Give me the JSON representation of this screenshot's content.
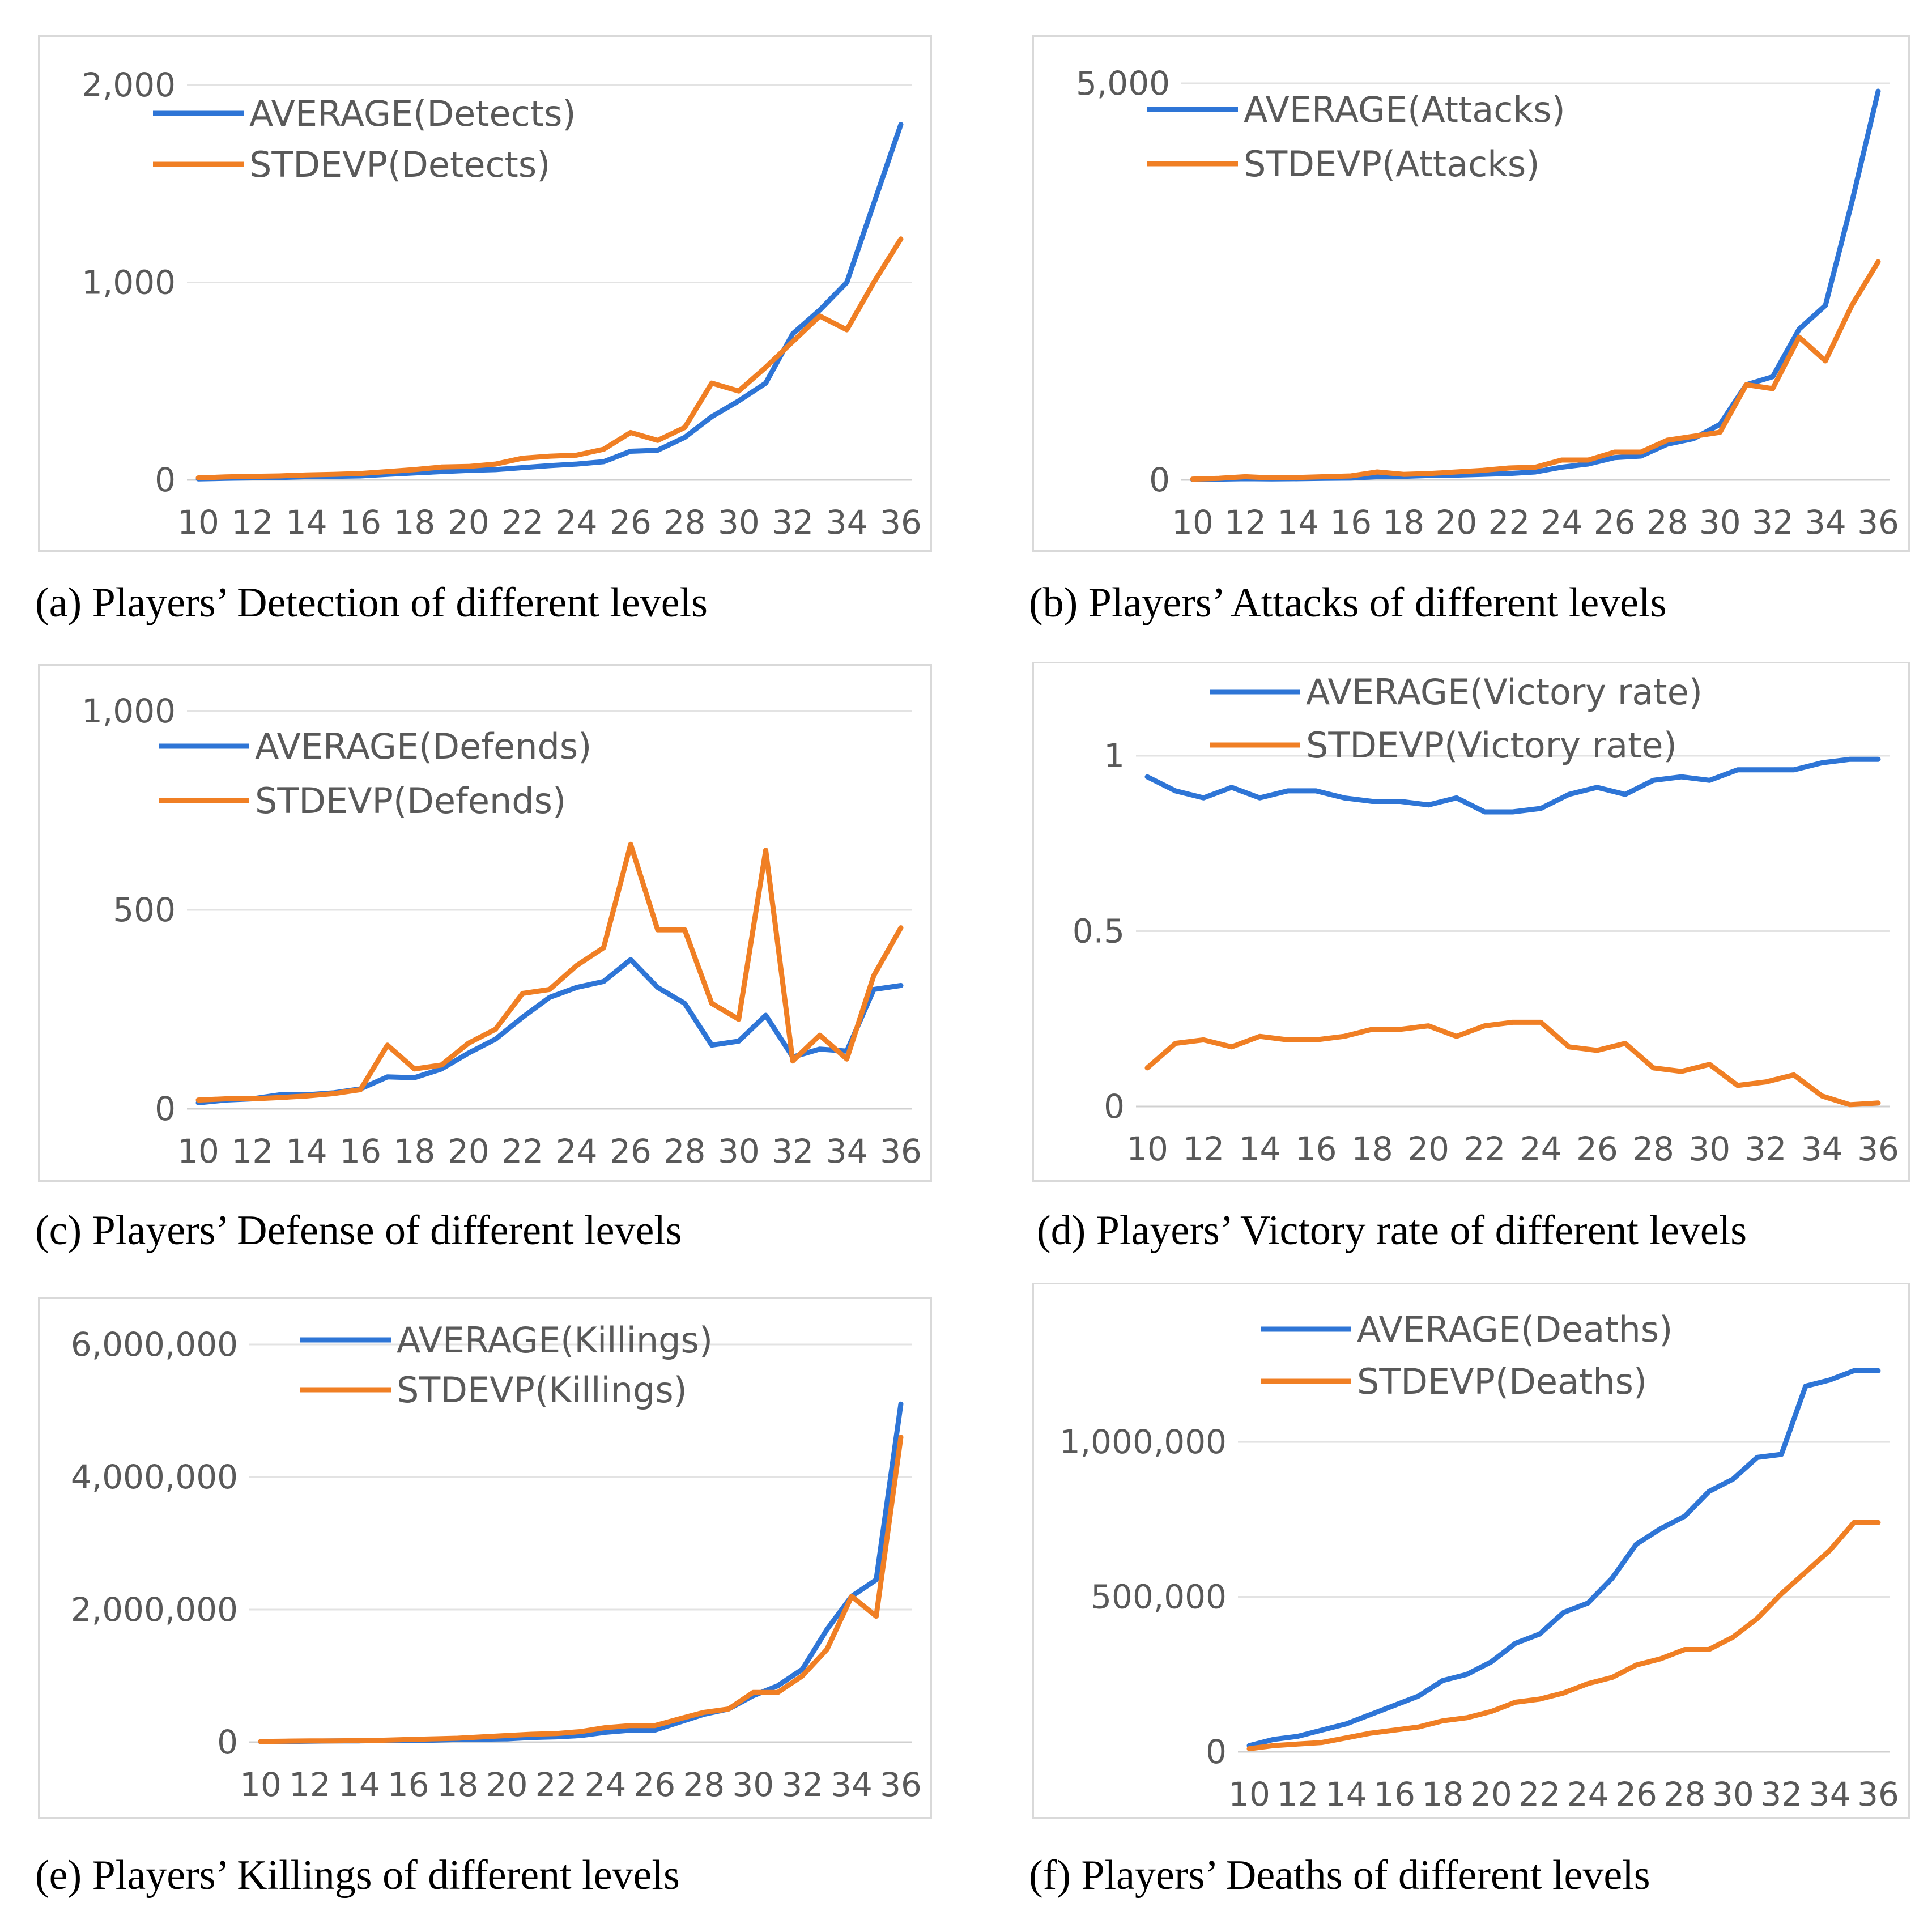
{
  "figure": {
    "colors": {
      "average": "#2e75d6",
      "stdevp": "#f07f24",
      "grid": "#e3e3e3",
      "axis": "#d0d0d0"
    }
  },
  "chart_data": [
    {
      "id": "a",
      "type": "line",
      "caption": "(a) Players’ Detection of different levels",
      "x": [
        10,
        11,
        12,
        13,
        14,
        15,
        16,
        17,
        18,
        19,
        20,
        21,
        22,
        23,
        24,
        25,
        26,
        27,
        28,
        29,
        30,
        31,
        32,
        33,
        34,
        35,
        36
      ],
      "x_tick_labels": [
        "10",
        "12",
        "14",
        "16",
        "18",
        "20",
        "22",
        "24",
        "26",
        "28",
        "30",
        "32",
        "34",
        "36"
      ],
      "y_ticks": [
        0,
        1000,
        2000
      ],
      "y_tick_labels": [
        "0",
        "1,000",
        "2,000"
      ],
      "ylim": [
        0,
        2000
      ],
      "legend_position": "top-left",
      "series": [
        {
          "name": "AVERAGE(Detects)",
          "color": "#2e75d6",
          "values": [
            5,
            8,
            10,
            12,
            16,
            18,
            20,
            28,
            35,
            42,
            48,
            52,
            62,
            72,
            80,
            92,
            145,
            150,
            215,
            320,
            400,
            490,
            740,
            860,
            1000,
            1400,
            1800
          ]
        },
        {
          "name": "STDEVP(Detects)",
          "color": "#f07f24",
          "values": [
            10,
            15,
            18,
            20,
            25,
            28,
            32,
            42,
            52,
            65,
            68,
            80,
            110,
            120,
            125,
            155,
            240,
            200,
            265,
            490,
            450,
            570,
            700,
            830,
            760,
            1000,
            1220
          ]
        }
      ]
    },
    {
      "id": "b",
      "type": "line",
      "caption": "(b) Players’ Attacks of different levels",
      "x": [
        10,
        11,
        12,
        13,
        14,
        15,
        16,
        17,
        18,
        19,
        20,
        21,
        22,
        23,
        24,
        25,
        26,
        27,
        28,
        29,
        30,
        31,
        32,
        33,
        34,
        35,
        36
      ],
      "x_tick_labels": [
        "10",
        "12",
        "14",
        "16",
        "18",
        "20",
        "22",
        "24",
        "26",
        "28",
        "30",
        "32",
        "34",
        "36"
      ],
      "y_ticks": [
        0,
        5000
      ],
      "y_tick_labels": [
        "0",
        "5,000"
      ],
      "ylim": [
        0,
        5000
      ],
      "legend_position": "top-left",
      "series": [
        {
          "name": "AVERAGE(Attacks)",
          "color": "#2e75d6",
          "values": [
            5,
            10,
            15,
            12,
            15,
            20,
            22,
            40,
            45,
            55,
            60,
            70,
            80,
            100,
            160,
            200,
            280,
            300,
            450,
            520,
            700,
            1200,
            1300,
            1900,
            2200,
            3500,
            4900
          ]
        },
        {
          "name": "STDEVP(Attacks)",
          "color": "#f07f24",
          "values": [
            10,
            20,
            40,
            25,
            30,
            40,
            50,
            100,
            70,
            80,
            100,
            120,
            150,
            160,
            250,
            250,
            350,
            350,
            500,
            550,
            600,
            1200,
            1150,
            1800,
            1500,
            2200,
            2750
          ]
        }
      ]
    },
    {
      "id": "c",
      "type": "line",
      "caption": "(c) Players’ Defense of different levels",
      "x": [
        10,
        11,
        12,
        13,
        14,
        15,
        16,
        17,
        18,
        19,
        20,
        21,
        22,
        23,
        24,
        25,
        26,
        27,
        28,
        29,
        30,
        31,
        32,
        33,
        34,
        35,
        36
      ],
      "x_tick_labels": [
        "10",
        "12",
        "14",
        "16",
        "18",
        "20",
        "22",
        "24",
        "26",
        "28",
        "30",
        "32",
        "34",
        "36"
      ],
      "y_ticks": [
        0,
        500,
        1000
      ],
      "y_tick_labels": [
        "0",
        "500",
        "1,000"
      ],
      "ylim": [
        0,
        1000
      ],
      "legend_position": "top-left",
      "series": [
        {
          "name": "AVERAGE(Defends)",
          "color": "#2e75d6",
          "values": [
            15,
            22,
            25,
            35,
            35,
            40,
            50,
            80,
            78,
            100,
            140,
            175,
            230,
            280,
            305,
            320,
            375,
            305,
            265,
            160,
            170,
            235,
            130,
            150,
            145,
            300,
            310
          ]
        },
        {
          "name": "STDEVP(Defends)",
          "color": "#f07f24",
          "values": [
            22,
            25,
            25,
            28,
            32,
            38,
            48,
            160,
            100,
            110,
            165,
            200,
            290,
            300,
            360,
            405,
            665,
            450,
            450,
            265,
            225,
            650,
            120,
            185,
            125,
            335,
            455
          ]
        }
      ]
    },
    {
      "id": "d",
      "type": "line",
      "caption": "(d) Players’ Victory rate of different levels",
      "x": [
        10,
        11,
        12,
        13,
        14,
        15,
        16,
        17,
        18,
        19,
        20,
        21,
        22,
        23,
        24,
        25,
        26,
        27,
        28,
        29,
        30,
        31,
        32,
        33,
        34,
        35,
        36
      ],
      "x_tick_labels": [
        "10",
        "12",
        "14",
        "16",
        "18",
        "20",
        "22",
        "24",
        "26",
        "28",
        "30",
        "32",
        "34",
        "36"
      ],
      "y_ticks": [
        0,
        0.5,
        1
      ],
      "y_tick_labels": [
        "0",
        "0.5",
        "1"
      ],
      "ylim": [
        0,
        1
      ],
      "legend_position": "top",
      "series": [
        {
          "name": "AVERAGE(Victory rate)",
          "color": "#2e75d6",
          "values": [
            0.94,
            0.9,
            0.88,
            0.91,
            0.88,
            0.9,
            0.9,
            0.88,
            0.87,
            0.87,
            0.86,
            0.88,
            0.84,
            0.84,
            0.85,
            0.89,
            0.91,
            0.89,
            0.93,
            0.94,
            0.93,
            0.96,
            0.96,
            0.96,
            0.98,
            0.99,
            0.99
          ]
        },
        {
          "name": "STDEVP(Victory rate)",
          "color": "#f07f24",
          "values": [
            0.11,
            0.18,
            0.19,
            0.17,
            0.2,
            0.19,
            0.19,
            0.2,
            0.22,
            0.22,
            0.23,
            0.2,
            0.23,
            0.24,
            0.24,
            0.17,
            0.16,
            0.18,
            0.11,
            0.1,
            0.12,
            0.06,
            0.07,
            0.09,
            0.03,
            0.005,
            0.01
          ]
        }
      ]
    },
    {
      "id": "e",
      "type": "line",
      "caption": "(e) Players’ Killings of different levels",
      "x": [
        10,
        11,
        12,
        13,
        14,
        15,
        16,
        17,
        18,
        19,
        20,
        21,
        22,
        23,
        24,
        25,
        26,
        27,
        28,
        29,
        30,
        31,
        32,
        33,
        34,
        35,
        36
      ],
      "x_tick_labels": [
        "10",
        "12",
        "14",
        "16",
        "18",
        "20",
        "22",
        "24",
        "26",
        "28",
        "30",
        "32",
        "34",
        "36"
      ],
      "y_ticks": [
        0,
        2000000,
        4000000,
        6000000
      ],
      "y_tick_labels": [
        "0",
        "2,000,000",
        "4,000,000",
        "6,000,000"
      ],
      "ylim": [
        0,
        6000000
      ],
      "legend_position": "top",
      "series": [
        {
          "name": "AVERAGE(Killings)",
          "color": "#2e75d6",
          "values": [
            5000,
            10000,
            15000,
            20000,
            20000,
            25000,
            25000,
            30000,
            40000,
            45000,
            50000,
            70000,
            80000,
            100000,
            150000,
            180000,
            180000,
            300000,
            420000,
            500000,
            700000,
            850000,
            1100000,
            1700000,
            2200000,
            2450000,
            5100000
          ]
        },
        {
          "name": "STDEVP(Killings)",
          "color": "#f07f24",
          "values": [
            10000,
            15000,
            20000,
            20000,
            25000,
            30000,
            40000,
            50000,
            60000,
            80000,
            100000,
            120000,
            130000,
            160000,
            220000,
            250000,
            250000,
            350000,
            450000,
            500000,
            750000,
            750000,
            1000000,
            1400000,
            2200000,
            1900000,
            4600000
          ]
        }
      ]
    },
    {
      "id": "f",
      "type": "line",
      "caption": "(f) Players’ Deaths of different levels",
      "x": [
        10,
        11,
        12,
        13,
        14,
        15,
        16,
        17,
        18,
        19,
        20,
        21,
        22,
        23,
        24,
        25,
        26,
        27,
        28,
        29,
        30,
        31,
        32,
        33,
        34,
        35,
        36
      ],
      "x_tick_labels": [
        "10",
        "12",
        "14",
        "16",
        "18",
        "20",
        "22",
        "24",
        "26",
        "28",
        "30",
        "32",
        "34",
        "36"
      ],
      "y_ticks": [
        0,
        500000,
        1000000
      ],
      "y_tick_labels": [
        "0",
        "500,000",
        "1,000,000"
      ],
      "ylim": [
        0,
        1300000
      ],
      "legend_position": "top",
      "series": [
        {
          "name": "AVERAGE(Deaths)",
          "color": "#2e75d6",
          "values": [
            20000,
            40000,
            50000,
            70000,
            90000,
            120000,
            150000,
            180000,
            230000,
            250000,
            290000,
            350000,
            380000,
            450000,
            480000,
            560000,
            670000,
            720000,
            760000,
            840000,
            880000,
            950000,
            960000,
            1180000,
            1200000,
            1230000,
            1230000
          ]
        },
        {
          "name": "STDEVP(Deaths)",
          "color": "#f07f24",
          "values": [
            10000,
            20000,
            25000,
            30000,
            45000,
            60000,
            70000,
            80000,
            100000,
            110000,
            130000,
            160000,
            170000,
            190000,
            220000,
            240000,
            280000,
            300000,
            330000,
            330000,
            370000,
            430000,
            510000,
            580000,
            650000,
            740000,
            740000
          ]
        }
      ]
    }
  ]
}
